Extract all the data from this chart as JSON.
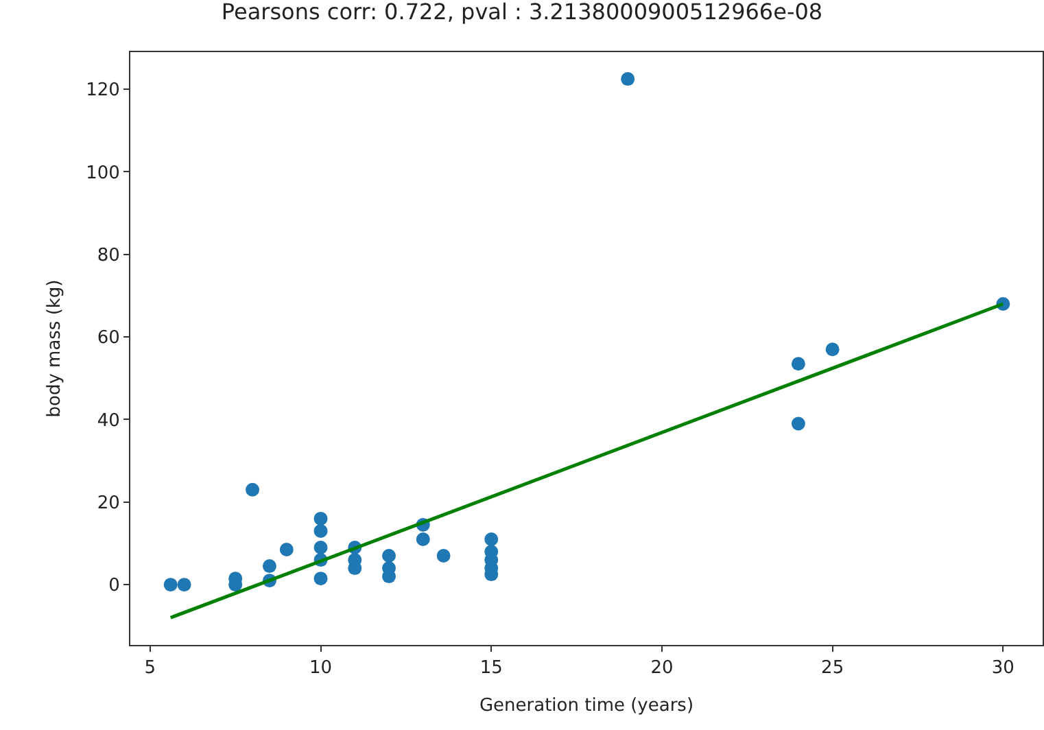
{
  "chart_data": {
    "type": "scatter",
    "title": "Pearsons corr: 0.722, pval : 3.2138000900512966e-08",
    "xlabel": "Generation time (years)",
    "ylabel": "body mass (kg)",
    "series": [
      {
        "color": "#1f77b4",
        "marker": "circle",
        "x": [
          5.6,
          6,
          7.5,
          7.5,
          8,
          8.5,
          8.5,
          9,
          10,
          10,
          10,
          10,
          10,
          11,
          11,
          11,
          12,
          12,
          12,
          13,
          13,
          13.6,
          15,
          15,
          15,
          15,
          15,
          19,
          24,
          24,
          25,
          30
        ],
        "values": [
          0,
          0,
          0,
          1.5,
          23,
          1,
          4.5,
          8.5,
          1.5,
          6,
          9,
          13,
          16,
          4,
          6,
          9,
          2,
          4,
          7,
          11,
          14.5,
          7,
          2.5,
          4,
          6,
          8,
          11,
          122.5,
          39,
          53.5,
          57,
          68
        ]
      },
      {
        "type": "line",
        "color": "#008000",
        "x": [
          5.6,
          30
        ],
        "values": [
          -8,
          68
        ]
      }
    ],
    "xlim": [
      4.42,
      31.16
    ],
    "ylim": [
      -14.6,
      129
    ],
    "xticks": [
      5,
      10,
      15,
      20,
      25,
      30
    ],
    "yticks": [
      0,
      20,
      40,
      60,
      80,
      100,
      120
    ]
  }
}
